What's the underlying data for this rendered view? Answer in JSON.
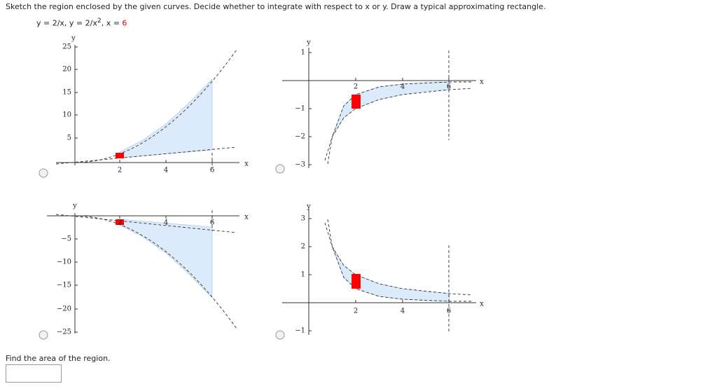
{
  "question": "Sketch the region enclosed by the given curves. Decide whether to integrate with respect to x or y. Draw a typical approximating rectangle.",
  "equation": [
    "y = 2/x,  y = 2/x",
    "2",
    ",  x = ",
    "6"
  ],
  "plots": [
    {
      "x_label": "x",
      "y_label": "y",
      "x_ticks": [
        "2",
        "4",
        "6"
      ],
      "y_ticks": [
        "25",
        "20",
        "15",
        "10",
        "5"
      ]
    },
    {
      "x_label": "x",
      "y_label": "y",
      "x_ticks": [
        "2",
        "4",
        "6"
      ],
      "y_ticks": [
        "1",
        "−1",
        "−2",
        "−3"
      ]
    },
    {
      "x_label": "x",
      "y_label": "y",
      "x_ticks": [
        "2",
        "4",
        "6"
      ],
      "y_ticks": [
        "−5",
        "−10",
        "−15",
        "−20",
        "−25"
      ]
    },
    {
      "x_label": "x",
      "y_label": "y",
      "x_ticks": [
        "2",
        "4",
        "6"
      ],
      "y_ticks": [
        "3",
        "2",
        "1",
        "−1"
      ]
    }
  ],
  "prompt": "Find the area of the region."
}
